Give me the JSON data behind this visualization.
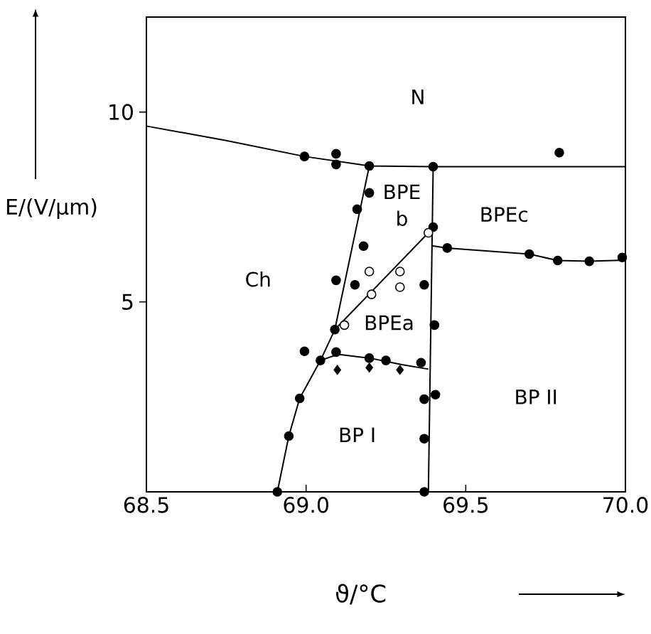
{
  "chart_data": {
    "type": "scatter",
    "xlabel": "ϑ/°C",
    "ylabel": "E/(V/µm)",
    "xlim": [
      68.5,
      70.0
    ],
    "ylim": [
      0,
      12.5
    ],
    "xticks": [
      {
        "value": 68.5,
        "label": "68.5"
      },
      {
        "value": 69.0,
        "label": "69.0"
      },
      {
        "value": 69.5,
        "label": "69.5"
      },
      {
        "value": 70.0,
        "label": "70.0"
      }
    ],
    "yticks": [
      5,
      10
    ],
    "series": [
      {
        "type": "line",
        "color": "#000000",
        "marker": "none",
        "x": [
          68.5,
          68.75,
          68.995,
          69.198,
          69.398,
          70.0
        ],
        "values": [
          9.63,
          9.25,
          8.83,
          8.58,
          8.56,
          8.56
        ]
      },
      {
        "type": "line",
        "color": "#000000",
        "marker": "none",
        "x": [
          68.91,
          68.946,
          68.98,
          69.045,
          69.09,
          69.198
        ],
        "values": [
          0,
          1.47,
          2.46,
          3.46,
          4.27,
          8.58
        ]
      },
      {
        "type": "line",
        "color": "#000000",
        "marker": "none",
        "x": [
          69.09,
          69.383
        ],
        "values": [
          4.27,
          6.82
        ]
      },
      {
        "type": "line",
        "color": "#000000",
        "marker": "none",
        "x": [
          69.045,
          69.1,
          69.2,
          69.3,
          69.383
        ],
        "values": [
          3.46,
          3.62,
          3.52,
          3.35,
          3.23
        ]
      },
      {
        "type": "line",
        "color": "#000000",
        "marker": "none",
        "x": [
          69.398,
          69.383
        ],
        "values": [
          8.56,
          0
        ]
      },
      {
        "type": "line",
        "color": "#000000",
        "marker": "none",
        "x": [
          69.393,
          69.442,
          69.699,
          69.788,
          69.887,
          70.0
        ],
        "values": [
          6.48,
          6.42,
          6.26,
          6.09,
          6.07,
          6.1
        ]
      },
      {
        "color": "#000000",
        "marker": "circle",
        "x": [
          68.995,
          69.094,
          69.094,
          69.198,
          69.398,
          69.793,
          69.198,
          69.16,
          69.18,
          69.094,
          69.153,
          69.398,
          69.442,
          69.699,
          69.788,
          69.887,
          69.99,
          69.37,
          69.09,
          68.995,
          69.045,
          69.094,
          69.198,
          69.25,
          69.36,
          68.98,
          68.946,
          68.91,
          69.37,
          69.37,
          69.37,
          69.402,
          69.405
        ],
        "values": [
          8.83,
          8.9,
          8.62,
          8.58,
          8.56,
          8.93,
          7.87,
          7.44,
          6.47,
          5.57,
          5.45,
          6.97,
          6.42,
          6.26,
          6.09,
          6.07,
          6.17,
          5.45,
          4.27,
          3.7,
          3.46,
          3.68,
          3.52,
          3.46,
          3.4,
          2.46,
          1.47,
          0,
          2.44,
          1.4,
          0,
          4.39,
          2.56
        ]
      },
      {
        "color": "#ffffff",
        "marker": "circle",
        "x": [
          69.198,
          69.205,
          69.294,
          69.294,
          69.12,
          69.383
        ],
        "values": [
          5.8,
          5.2,
          5.8,
          5.39,
          4.39,
          6.82
        ]
      },
      {
        "color": "#000000",
        "marker": "diamond",
        "x": [
          69.098,
          69.198,
          69.294
        ],
        "values": [
          3.21,
          3.27,
          3.21
        ]
      }
    ],
    "annotations": [
      {
        "text": "N",
        "x": 69.35,
        "y": 10.4
      },
      {
        "text": "Ch",
        "x": 68.85,
        "y": 5.6
      },
      {
        "text": "BPE",
        "x": 69.3,
        "y": 7.9
      },
      {
        "text": "b",
        "x": 69.3,
        "y": 7.2
      },
      {
        "text": "BPEc",
        "x": 69.62,
        "y": 7.3
      },
      {
        "text": "BPEa",
        "x": 69.26,
        "y": 4.45
      },
      {
        "text": "BP I",
        "x": 69.16,
        "y": 1.5
      },
      {
        "text": "BP II",
        "x": 69.72,
        "y": 2.5
      }
    ]
  }
}
